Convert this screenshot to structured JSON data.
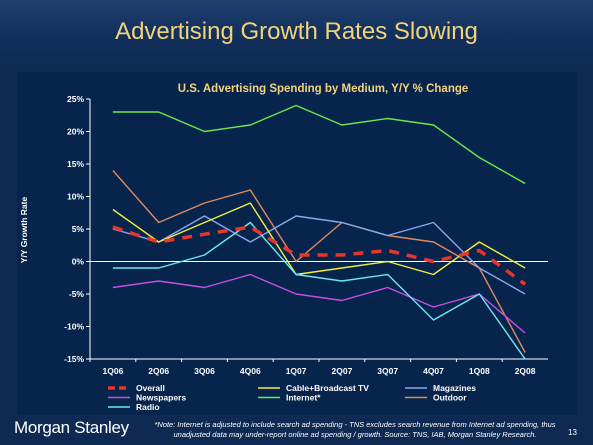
{
  "slide": {
    "title": "Advertising Growth Rates Slowing",
    "brand": "Morgan Stanley",
    "footnote": "*Note: Internet is adjusted to include search ad spending - TNS excludes search revenue from Internet ad spending, thus unadjusted data may under-report online ad spending / growth. Source: TNS, IAB, Morgan Stanley Research.",
    "page_number": "13"
  },
  "chart_data": {
    "type": "line",
    "title": "U.S. Advertising Spending by Medium, Y/Y % Change",
    "xlabel": "",
    "ylabel": "Y/Y Growth Rate",
    "categories": [
      "1Q06",
      "2Q06",
      "3Q06",
      "4Q06",
      "1Q07",
      "2Q07",
      "3Q07",
      "4Q07",
      "1Q08",
      "2Q08"
    ],
    "ylim": [
      -15,
      25
    ],
    "yticks": [
      25,
      20,
      15,
      10,
      5,
      0,
      -5,
      -10,
      -15
    ],
    "ytick_labels": [
      "25%",
      "20%",
      "15%",
      "10%",
      "5%",
      "0%",
      "-5%",
      "-10%",
      "-15%"
    ],
    "grid": false,
    "legend_position": "bottom",
    "series": [
      {
        "name": "Overall",
        "color": "#e8352a",
        "dashed": true,
        "values": [
          5.3,
          3,
          4.2,
          5.3,
          1,
          1,
          1.7,
          0,
          1.7,
          -3.5
        ]
      },
      {
        "name": "Cable+Broadcast TV",
        "color": "#f2ef3a",
        "dashed": false,
        "values": [
          8,
          3,
          6,
          9,
          -2,
          -1,
          0,
          -2,
          3,
          -1
        ]
      },
      {
        "name": "Magazines",
        "color": "#8aa6e8",
        "dashed": false,
        "values": [
          5,
          3,
          7,
          3,
          7,
          6,
          4,
          6,
          -1,
          -5
        ]
      },
      {
        "name": "Newspapers",
        "color": "#c64fe4",
        "dashed": false,
        "values": [
          -4,
          -3,
          -4,
          -2,
          -5,
          -6,
          -4,
          -7,
          -5,
          -11
        ]
      },
      {
        "name": "Internet*",
        "color": "#6ee64a",
        "dashed": false,
        "values": [
          23,
          23,
          20,
          21,
          24,
          21,
          22,
          21,
          16,
          12
        ]
      },
      {
        "name": "Outdoor",
        "color": "#e08a5c",
        "dashed": false,
        "values": [
          14,
          6,
          9,
          11,
          0,
          6,
          4,
          3,
          -1,
          -14
        ]
      },
      {
        "name": "Radio",
        "color": "#6fe6ee",
        "dashed": false,
        "values": [
          -1,
          -1,
          1,
          6,
          -2,
          -3,
          -2,
          -9,
          -5,
          -15
        ]
      }
    ]
  }
}
